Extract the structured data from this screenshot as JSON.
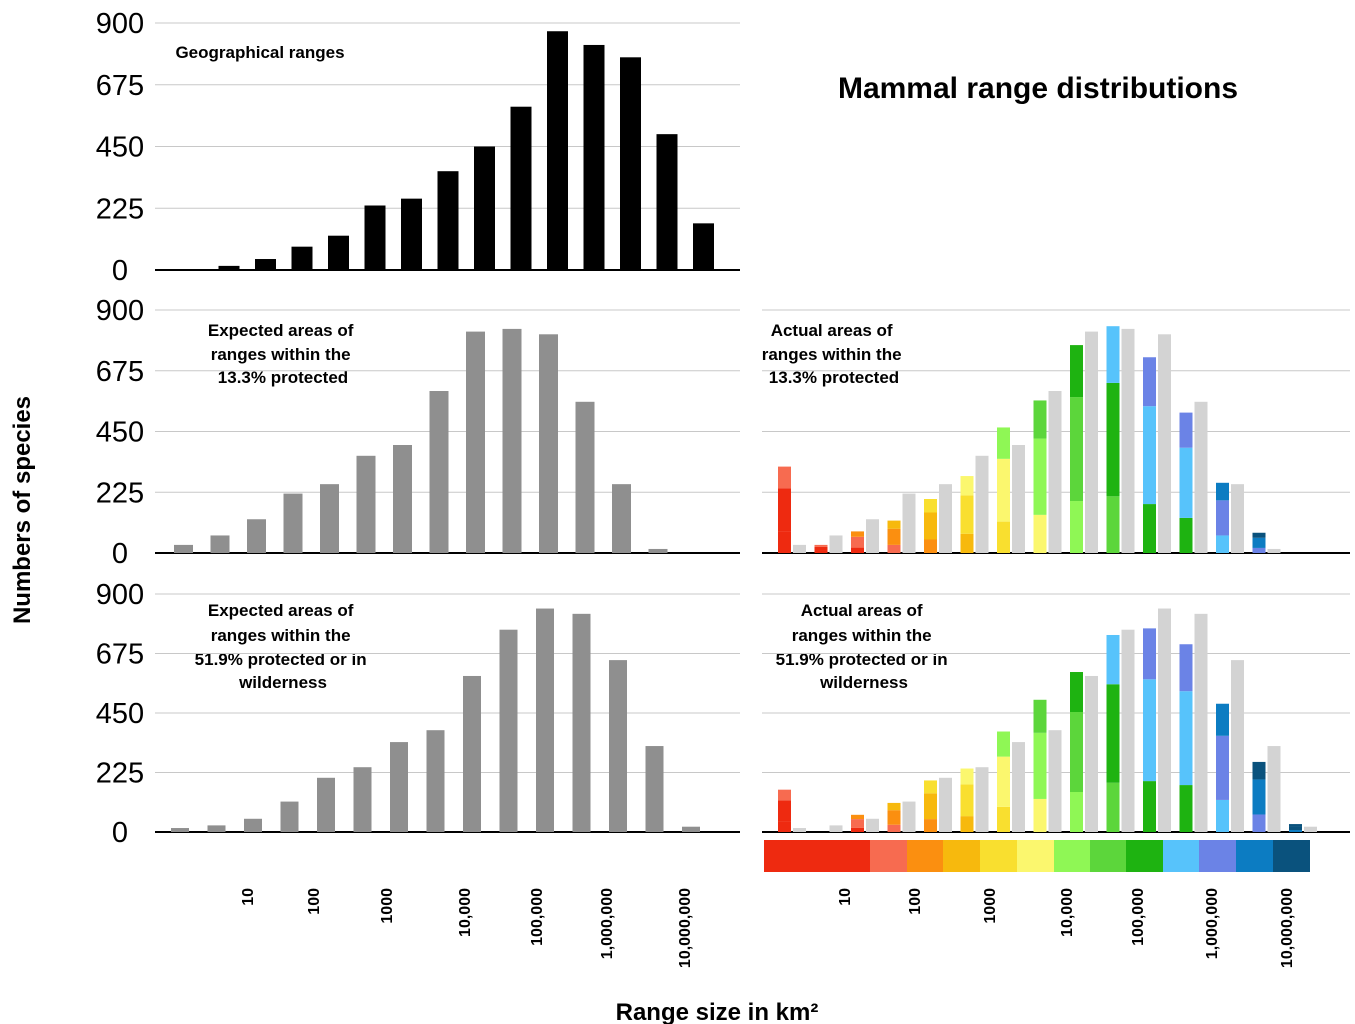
{
  "title": "Mammal range distributions",
  "ylabel": "Numbers of species",
  "xlabel": "Range size in km²",
  "yticks": [
    "0",
    "225",
    "450",
    "675",
    "900"
  ],
  "xticks": [
    "10",
    "100",
    "1000",
    "10,000",
    "100,000",
    "1,000,000",
    "10,000,000"
  ],
  "colors": {
    "black": "#000000",
    "grey": "#8f8f8f",
    "light_grey": "#d3d3d3",
    "scale": [
      "#ee2a10",
      "#f76b50",
      "#fb8f10",
      "#f7b90d",
      "#f9df2f",
      "#fbf76e",
      "#8ff755",
      "#5cd63b",
      "#1eb311",
      "#57c3fb",
      "#6b83e6",
      "#0c7cc2",
      "#0a527d"
    ]
  },
  "chart_data": [
    {
      "type": "bar",
      "title": "Geographical ranges",
      "ylim": [
        0,
        900
      ],
      "values": [
        0,
        15,
        40,
        85,
        125,
        235,
        260,
        360,
        450,
        595,
        870,
        820,
        775,
        495,
        170
      ],
      "series_color": "black"
    },
    {
      "type": "bar",
      "title": "Expected areas of ranges within the 13.3% protected",
      "ylim": [
        0,
        900
      ],
      "values": [
        30,
        65,
        125,
        220,
        255,
        360,
        400,
        600,
        820,
        830,
        810,
        560,
        255,
        15,
        0
      ],
      "series_color": "grey"
    },
    {
      "type": "bar",
      "title": "Actual areas of ranges within the 13.3% protected",
      "ylim": [
        0,
        900
      ],
      "series": [
        {
          "name": "Actual",
          "values": [
            320,
            30,
            80,
            120,
            200,
            285,
            465,
            565,
            770,
            840,
            725,
            520,
            260,
            75
          ]
        },
        {
          "name": "Expected",
          "values": [
            30,
            65,
            125,
            220,
            255,
            360,
            400,
            600,
            820,
            830,
            810,
            560,
            255,
            15
          ]
        }
      ]
    },
    {
      "type": "bar",
      "title": "Expected areas of ranges within the 51.9% protected or in wilderness",
      "ylim": [
        0,
        900
      ],
      "values": [
        15,
        25,
        50,
        115,
        205,
        245,
        340,
        385,
        590,
        765,
        845,
        825,
        650,
        325,
        20
      ],
      "series_color": "grey"
    },
    {
      "type": "bar",
      "title": "Actual areas of ranges within the 51.9% protected or in wilderness",
      "ylim": [
        0,
        900
      ],
      "series": [
        {
          "name": "Actual",
          "values": [
            160,
            0,
            65,
            110,
            195,
            240,
            380,
            500,
            605,
            745,
            770,
            710,
            485,
            265,
            30
          ]
        },
        {
          "name": "Expected",
          "values": [
            15,
            25,
            50,
            115,
            205,
            245,
            340,
            385,
            590,
            765,
            845,
            825,
            650,
            325,
            20
          ]
        }
      ]
    }
  ]
}
